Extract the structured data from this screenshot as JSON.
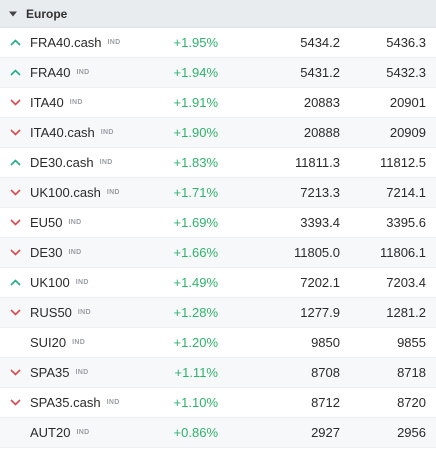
{
  "colors": {
    "up": "#1fae8a",
    "down": "#e0474c",
    "positive_change": "#2fb36b"
  },
  "group": {
    "title": "Europe",
    "toggle_icon": "caret-down-icon"
  },
  "rows": [
    {
      "symbol": "FRA40.cash",
      "tag": "IND",
      "direction": "up",
      "change": "+1.95%",
      "bid": "5434.2",
      "ask": "5436.3"
    },
    {
      "symbol": "FRA40",
      "tag": "IND",
      "direction": "up",
      "change": "+1.94%",
      "bid": "5431.2",
      "ask": "5432.3"
    },
    {
      "symbol": "ITA40",
      "tag": "IND",
      "direction": "down",
      "change": "+1.91%",
      "bid": "20883",
      "ask": "20901"
    },
    {
      "symbol": "ITA40.cash",
      "tag": "IND",
      "direction": "down",
      "change": "+1.90%",
      "bid": "20888",
      "ask": "20909"
    },
    {
      "symbol": "DE30.cash",
      "tag": "IND",
      "direction": "up",
      "change": "+1.83%",
      "bid": "11811.3",
      "ask": "11812.5"
    },
    {
      "symbol": "UK100.cash",
      "tag": "IND",
      "direction": "down",
      "change": "+1.71%",
      "bid": "7213.3",
      "ask": "7214.1"
    },
    {
      "symbol": "EU50",
      "tag": "IND",
      "direction": "down",
      "change": "+1.69%",
      "bid": "3393.4",
      "ask": "3395.6"
    },
    {
      "symbol": "DE30",
      "tag": "IND",
      "direction": "down",
      "change": "+1.66%",
      "bid": "11805.0",
      "ask": "11806.1"
    },
    {
      "symbol": "UK100",
      "tag": "IND",
      "direction": "up",
      "change": "+1.49%",
      "bid": "7202.1",
      "ask": "7203.4"
    },
    {
      "symbol": "RUS50",
      "tag": "IND",
      "direction": "down",
      "change": "+1.28%",
      "bid": "1277.9",
      "ask": "1281.2"
    },
    {
      "symbol": "SUI20",
      "tag": "IND",
      "direction": "none",
      "change": "+1.20%",
      "bid": "9850",
      "ask": "9855"
    },
    {
      "symbol": "SPA35",
      "tag": "IND",
      "direction": "down",
      "change": "+1.11%",
      "bid": "8708",
      "ask": "8718"
    },
    {
      "symbol": "SPA35.cash",
      "tag": "IND",
      "direction": "down",
      "change": "+1.10%",
      "bid": "8712",
      "ask": "8720"
    },
    {
      "symbol": "AUT20",
      "tag": "IND",
      "direction": "none",
      "change": "+0.86%",
      "bid": "2927",
      "ask": "2956"
    }
  ]
}
